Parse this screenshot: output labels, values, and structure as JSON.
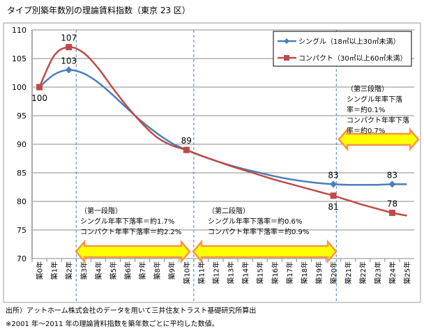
{
  "title": "タイプ別築年数別の理論賃料指数（東京 23 区）",
  "footnotes": [
    "出所）アットホーム株式会社のデータを用いて三井住友トラスト基礎研究所算出",
    "※2001 年～2011 年の理論賃料指数を築年数ごとに平均した数値。"
  ],
  "chart_data": {
    "type": "line",
    "title": "タイプ別築年数別の理論賃料指数（東京 23 区）",
    "categories": [
      "築0年",
      "築1年",
      "築2年",
      "築3年",
      "築4年",
      "築5年",
      "築6年",
      "築7年",
      "築8年",
      "築9年",
      "築10年",
      "築11年",
      "築12年",
      "築13年",
      "築14年",
      "築15年",
      "築16年",
      "築17年",
      "築18年",
      "築19年",
      "築20年",
      "築21年",
      "築22年",
      "築23年",
      "築24年",
      "築25年"
    ],
    "ylim": [
      70,
      110
    ],
    "yticks": [
      70,
      75,
      80,
      85,
      90,
      95,
      100,
      105,
      110
    ],
    "grid": true,
    "legend_position": "top-right",
    "series": [
      {
        "name": "シングル（18㎡以上30㎡未満）",
        "color": "#4a7ebb",
        "marker": "diamond",
        "values": [
          100,
          102.2,
          103,
          102.4,
          100.8,
          98.6,
          96.2,
          93.9,
          91.9,
          90.2,
          89,
          88,
          87.1,
          86.3,
          85.6,
          85,
          84.4,
          83.9,
          83.5,
          83.2,
          83,
          82.9,
          82.9,
          82.9,
          83,
          83
        ],
        "marker_indices": [
          0,
          2,
          10,
          20,
          24
        ],
        "data_labels": [
          {
            "index": 2,
            "text": "103"
          },
          {
            "index": 20,
            "text": "83"
          },
          {
            "index": 24,
            "text": "83"
          }
        ]
      },
      {
        "name": "コンパクト（30㎡以上60㎡未満）",
        "color": "#be4b48",
        "marker": "square",
        "values": [
          100,
          105.5,
          107,
          106,
          103.3,
          99.8,
          96.5,
          93.6,
          91.2,
          89.8,
          89,
          88,
          87.1,
          86.2,
          85.4,
          84.6,
          83.8,
          83.1,
          82.4,
          81.7,
          81,
          80.2,
          79.4,
          78.7,
          78,
          77.5
        ],
        "marker_indices": [
          0,
          2,
          10,
          20,
          24
        ],
        "data_labels": [
          {
            "index": 0,
            "text": "100"
          },
          {
            "index": 2,
            "text": "107"
          },
          {
            "index": 10,
            "text": "89"
          },
          {
            "index": 20,
            "text": "81"
          },
          {
            "index": 24,
            "text": "78"
          }
        ]
      }
    ],
    "annotations": [
      {
        "lines": [
          "（第一段階）",
          "シングル年率下落率＝約1.7%",
          "コンパクト年率下落率＝約2.2%"
        ]
      },
      {
        "lines": [
          "（第二段階）",
          "シングル年率下落率＝約0.6%",
          "コンパクト年率下落率＝約0.9%"
        ]
      },
      {
        "lines": [
          "（第三段階）",
          "シングル年率下落",
          "率＝約0.1%",
          "コンパクト年率下落",
          "率＝約0.7%"
        ]
      }
    ],
    "arrow_color": "#ffff00",
    "arrow_border": "#f79646"
  }
}
